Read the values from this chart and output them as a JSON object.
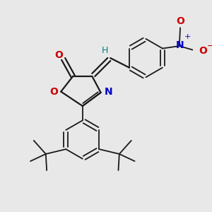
{
  "background_color": "#e8e8e8",
  "bond_color": "#1a1a1a",
  "oxygen_color": "#cc0000",
  "nitrogen_color": "#0000cc",
  "teal_color": "#008080",
  "figsize": [
    3.0,
    3.0
  ],
  "dpi": 100,
  "xlim": [
    -1.8,
    2.2
  ],
  "ylim": [
    -2.2,
    1.8
  ]
}
